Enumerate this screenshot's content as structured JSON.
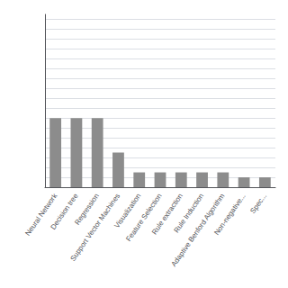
{
  "chart_data": {
    "type": "bar",
    "categories": [
      "Neural Network",
      "Decision tree",
      "Regression",
      "Support Vector Machines",
      "Visualization",
      "Feature Selection",
      "Rule extraction",
      "Rule Induction",
      "Adaptive Benford Algorithm",
      "Non-negative...",
      "Spec..."
    ],
    "values": [
      14,
      14,
      14,
      7,
      3,
      3,
      3,
      3,
      3,
      2,
      2
    ],
    "color": "#8c8c8c",
    "ylim": [
      0,
      35
    ],
    "yticks": [
      0,
      2,
      4,
      6,
      8,
      10,
      12,
      14,
      16,
      18,
      20,
      22,
      24,
      26,
      28,
      30,
      32,
      34
    ],
    "grid": true,
    "tick_labels": "x"
  }
}
